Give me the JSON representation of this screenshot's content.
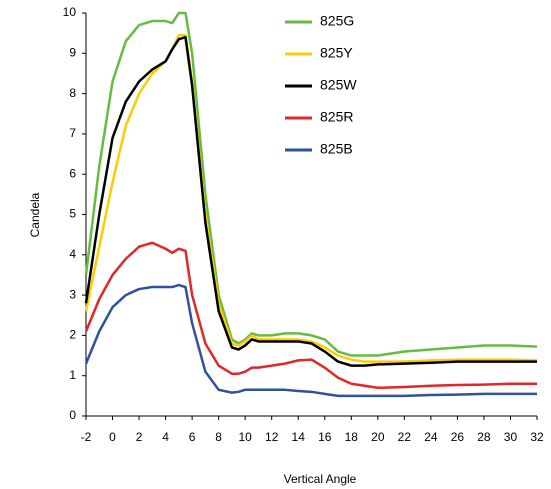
{
  "chart_data": {
    "type": "line",
    "x_label": "Vertical Angle",
    "y_label": "Candela",
    "x": [
      -2,
      -1,
      0,
      1,
      2,
      3,
      4,
      4.5,
      5,
      5.5,
      6,
      7,
      8,
      9,
      9.5,
      10,
      10.5,
      11,
      12,
      13,
      14,
      15,
      16,
      17,
      18,
      19,
      20,
      22,
      24,
      26,
      28,
      30,
      32
    ],
    "series": [
      {
        "name": "825G",
        "color": "#66bb44",
        "values": [
          3.5,
          6.2,
          8.3,
          9.3,
          9.7,
          9.8,
          9.8,
          9.75,
          10,
          10,
          9.0,
          5.5,
          3.0,
          1.9,
          1.8,
          1.9,
          2.05,
          2.0,
          2.0,
          2.05,
          2.05,
          2.0,
          1.9,
          1.6,
          1.5,
          1.5,
          1.5,
          1.6,
          1.65,
          1.7,
          1.75,
          1.75,
          1.72
        ]
      },
      {
        "name": "825Y",
        "color": "#ffcc00",
        "values": [
          2.6,
          4.2,
          5.8,
          7.2,
          8.0,
          8.5,
          8.8,
          9.1,
          9.45,
          9.45,
          8.3,
          5.0,
          2.8,
          1.8,
          1.75,
          1.85,
          2.0,
          1.9,
          1.9,
          1.9,
          1.9,
          1.85,
          1.7,
          1.5,
          1.4,
          1.35,
          1.35,
          1.35,
          1.38,
          1.4,
          1.4,
          1.4,
          1.38
        ]
      },
      {
        "name": "825W",
        "color": "#000000",
        "values": [
          2.8,
          5.0,
          6.9,
          7.8,
          8.3,
          8.6,
          8.8,
          9.1,
          9.35,
          9.4,
          8.2,
          4.8,
          2.6,
          1.7,
          1.65,
          1.75,
          1.9,
          1.85,
          1.85,
          1.85,
          1.85,
          1.8,
          1.6,
          1.35,
          1.25,
          1.25,
          1.28,
          1.3,
          1.32,
          1.35,
          1.35,
          1.35,
          1.35
        ]
      },
      {
        "name": "825R",
        "color": "#e02828",
        "values": [
          2.1,
          2.9,
          3.5,
          3.9,
          4.2,
          4.3,
          4.15,
          4.05,
          4.15,
          4.1,
          3.0,
          1.8,
          1.25,
          1.05,
          1.05,
          1.1,
          1.2,
          1.2,
          1.25,
          1.3,
          1.38,
          1.4,
          1.2,
          0.95,
          0.8,
          0.75,
          0.7,
          0.72,
          0.75,
          0.77,
          0.78,
          0.8,
          0.8
        ]
      },
      {
        "name": "825B",
        "color": "#3050a0",
        "values": [
          1.3,
          2.1,
          2.7,
          3.0,
          3.15,
          3.2,
          3.2,
          3.2,
          3.25,
          3.2,
          2.3,
          1.1,
          0.65,
          0.58,
          0.6,
          0.65,
          0.65,
          0.65,
          0.65,
          0.65,
          0.62,
          0.6,
          0.55,
          0.5,
          0.5,
          0.5,
          0.5,
          0.5,
          0.52,
          0.53,
          0.55,
          0.55,
          0.55
        ]
      }
    ],
    "xlim": [
      -2,
      32
    ],
    "xticks": [
      -2,
      0,
      2,
      4,
      6,
      8,
      10,
      12,
      14,
      16,
      18,
      20,
      22,
      24,
      26,
      28,
      30,
      32
    ],
    "ylim": [
      0,
      10
    ],
    "yticks": [
      0,
      1,
      2,
      3,
      4,
      5,
      6,
      7,
      8,
      9,
      10
    ],
    "grid": false
  }
}
